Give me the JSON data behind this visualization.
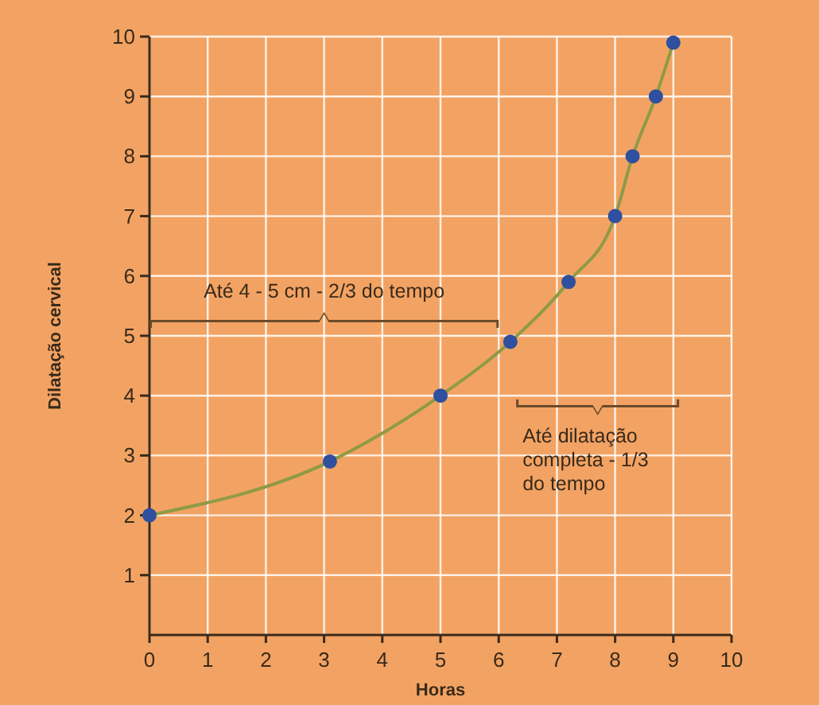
{
  "chart_data": {
    "type": "line",
    "xlabel": "Horas",
    "ylabel": "Dilatação cervical",
    "x": [
      0,
      3.1,
      5,
      6.2,
      7.2,
      8,
      8.3,
      8.7,
      9
    ],
    "series": [
      {
        "color": "#8f9a45",
        "values": [
          2,
          2.9,
          4,
          4.9,
          5.9,
          7,
          8,
          9,
          9.9
        ]
      }
    ],
    "xlim": [
      0,
      10
    ],
    "ylim": [
      0,
      10
    ],
    "xticks": [
      0,
      1,
      2,
      3,
      4,
      5,
      6,
      7,
      8,
      9,
      10
    ],
    "yticks": [
      1,
      2,
      3,
      4,
      5,
      6,
      7,
      8,
      9,
      10
    ],
    "grid": true,
    "marker": "circle",
    "line_style": "solid",
    "annotations": [
      "Até 4 - 5 cm - 2/3 do tempo",
      "Até dilatação completa - 1/3 do tempo"
    ]
  }
}
